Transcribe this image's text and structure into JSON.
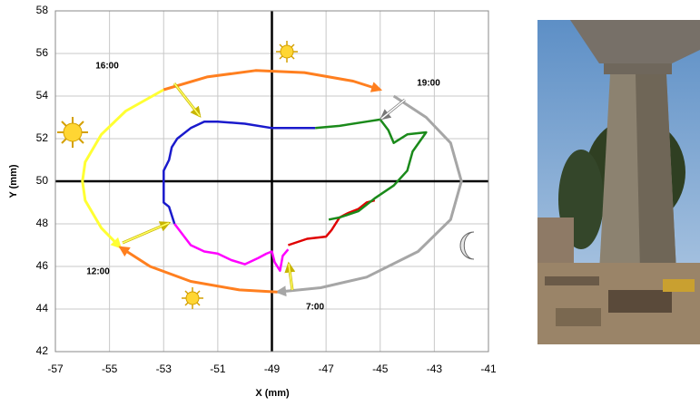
{
  "chart_data": {
    "type": "line",
    "x_label": "X (mm)",
    "y_label": "Y (mm)",
    "xlim": [
      -57,
      -41
    ],
    "xticks": [
      -57,
      -55,
      -53,
      -51,
      -49,
      -47,
      -45,
      -43,
      -41
    ],
    "ylim": [
      42,
      58
    ],
    "yticks": [
      42,
      44,
      46,
      48,
      50,
      52,
      54,
      56,
      58
    ],
    "grid": true,
    "annotations": [
      "16:00",
      "19:00",
      "12:00",
      "7:00"
    ],
    "series": [
      {
        "color": "#ffff33",
        "x": [
          -53.0,
          -54.4,
          -55.3,
          -55.9,
          -56.0,
          -55.9,
          -55.3,
          -54.6
        ],
        "values": [
          54.3,
          53.3,
          52.2,
          50.9,
          50.0,
          49.1,
          47.8,
          46.9
        ]
      },
      {
        "color": "#ff7f1f",
        "x": [
          -53.0,
          -51.4,
          -49.6,
          -47.8,
          -46.0,
          -45.0
        ],
        "values": [
          54.3,
          54.9,
          55.2,
          55.1,
          54.7,
          54.3
        ]
      },
      {
        "color": "#a6a6a6",
        "x": [
          -44.5,
          -43.3,
          -42.4,
          -42.0,
          -42.4,
          -43.6,
          -45.5,
          -47.2,
          -48.8
        ],
        "values": [
          54.0,
          53.0,
          51.8,
          50.0,
          48.2,
          46.7,
          45.5,
          45.0,
          44.8
        ]
      },
      {
        "color": "#ff7f1f",
        "x": [
          -48.8,
          -50.2,
          -52.0,
          -53.5,
          -54.6
        ],
        "values": [
          44.8,
          44.9,
          45.3,
          46.0,
          46.9
        ]
      },
      {
        "color": "#1a1acc",
        "x": [
          -47.4,
          -48.0,
          -49.0,
          -50.0,
          -51.0,
          -51.5,
          -52.0,
          -52.5,
          -52.7,
          -52.8,
          -53.0,
          -53.0,
          -53.0,
          -52.8,
          -52.6
        ],
        "values": [
          52.5,
          52.5,
          52.5,
          52.7,
          52.8,
          52.8,
          52.5,
          52.0,
          51.6,
          51.0,
          50.5,
          49.5,
          49.0,
          48.8,
          48.0
        ]
      },
      {
        "color": "#ff00ff",
        "x": [
          -52.6,
          -52.0,
          -51.5,
          -51.0,
          -50.5,
          -50.0,
          -49.5,
          -49.2,
          -49.0,
          -48.9,
          -48.7,
          -48.6,
          -48.4
        ],
        "values": [
          48.0,
          47.0,
          46.7,
          46.6,
          46.3,
          46.1,
          46.4,
          46.6,
          46.7,
          46.2,
          45.8,
          46.5,
          46.8
        ]
      },
      {
        "color": "#e00000",
        "x": [
          -48.4,
          -47.7,
          -47.0,
          -46.8,
          -46.5,
          -46.2,
          -45.8,
          -45.5,
          -45.2
        ],
        "values": [
          47.0,
          47.3,
          47.4,
          47.7,
          48.3,
          48.5,
          48.7,
          49.0,
          49.1
        ]
      },
      {
        "color": "#1a8a1a",
        "x": [
          -47.4,
          -46.5,
          -45.5,
          -45.0,
          -44.7,
          -44.5,
          -44.0,
          -43.3,
          -43.8,
          -44.0,
          -44.5,
          -45.2,
          -45.8,
          -46.5,
          -46.9
        ],
        "values": [
          52.5,
          52.6,
          52.8,
          52.9,
          52.4,
          51.8,
          52.2,
          52.3,
          51.4,
          50.5,
          49.8,
          49.2,
          48.6,
          48.3,
          48.2
        ]
      }
    ]
  }
}
